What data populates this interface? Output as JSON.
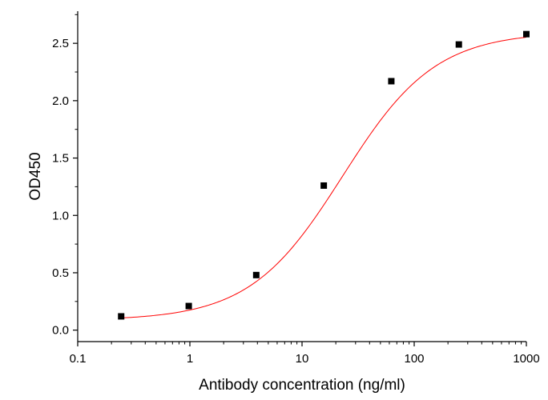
{
  "chart_data": {
    "type": "scatter",
    "xlabel": "Antibody concentration (ng/ml)",
    "ylabel": "OD450",
    "xscale": "log",
    "xlim": [
      0.1,
      1000
    ],
    "ylim": [
      -0.1,
      2.78
    ],
    "x_ticks": [
      0.1,
      1,
      10,
      100,
      1000
    ],
    "x_tick_labels": [
      "0.1",
      "1",
      "10",
      "100",
      "1000"
    ],
    "y_ticks": [
      0.0,
      0.5,
      1.0,
      1.5,
      2.0,
      2.5
    ],
    "y_tick_labels": [
      "0.0",
      "0.5",
      "1.0",
      "1.5",
      "2.0",
      "2.5"
    ],
    "grid": false,
    "series": [
      {
        "x": [
          0.244,
          0.977,
          3.906,
          15.625,
          62.5,
          250,
          1000
        ],
        "y": [
          0.12,
          0.21,
          0.48,
          1.26,
          2.17,
          2.49,
          2.58
        ],
        "color": "#000000",
        "marker": "square"
      }
    ],
    "fit_curve": {
      "model": "4PL",
      "color": "#ff0000",
      "bottom": 0.085,
      "top": 2.6,
      "ec50": 23.0,
      "hill": 1.05,
      "x_range": [
        0.244,
        1000
      ]
    }
  }
}
